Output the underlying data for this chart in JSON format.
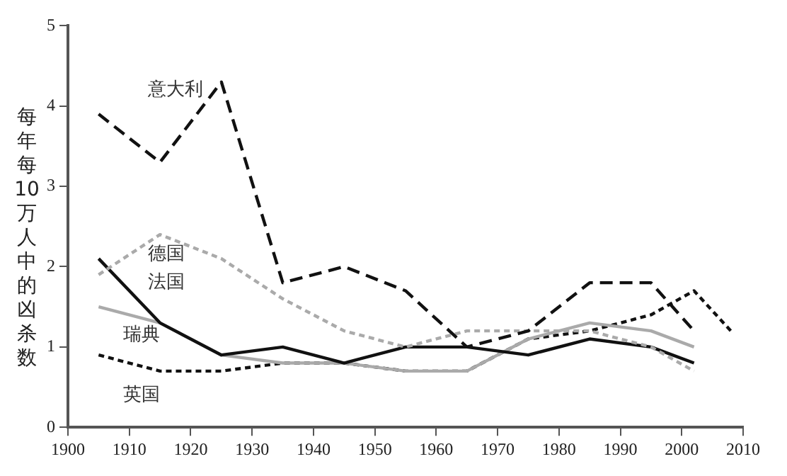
{
  "chart_data": {
    "type": "line",
    "ylabel": "每年每10万人中的凶杀数",
    "xlim": [
      1900,
      2010
    ],
    "xticks": [
      1900,
      1910,
      1920,
      1930,
      1940,
      1950,
      1960,
      1970,
      1980,
      1990,
      2000,
      2010
    ],
    "ylim": [
      0,
      5
    ],
    "yticks": [
      0,
      1,
      2,
      3,
      4,
      5
    ],
    "grid": false,
    "legend": false,
    "marker": "none",
    "x": [
      1905,
      1915,
      1925,
      1935,
      1945,
      1955,
      1965,
      1975,
      1985,
      1995,
      2002
    ],
    "series": [
      {
        "name": "意大利",
        "color": "#111111",
        "line_style": "dashed",
        "values": [
          3.9,
          3.3,
          4.3,
          1.8,
          2.0,
          1.7,
          1.0,
          1.2,
          1.8,
          1.8,
          1.2
        ]
      },
      {
        "name": "德国",
        "color": "#aaaaaa",
        "line_style": "dotted",
        "values": [
          1.9,
          2.4,
          2.1,
          1.6,
          1.2,
          1.0,
          1.2,
          1.2,
          1.2,
          1.0,
          0.7
        ]
      },
      {
        "name": "法国",
        "color": "#111111",
        "line_style": "solid",
        "values": [
          2.1,
          1.3,
          0.9,
          1.0,
          0.8,
          1.0,
          1.0,
          0.9,
          1.1,
          1.0,
          0.8
        ]
      },
      {
        "name": "瑞典",
        "color": "#aaaaaa",
        "line_style": "solid",
        "values": [
          1.5,
          1.3,
          0.9,
          0.8,
          0.8,
          0.7,
          0.7,
          1.1,
          1.3,
          1.2,
          1.0
        ]
      },
      {
        "name": "英国",
        "color": "#111111",
        "line_style": "dotted",
        "x": [
          1905,
          1915,
          1925,
          1935,
          1945,
          1955,
          1965,
          1975,
          1985,
          1995,
          2002,
          2008
        ],
        "values": [
          0.9,
          0.7,
          0.7,
          0.8,
          0.8,
          0.7,
          0.7,
          1.1,
          1.2,
          1.4,
          1.7,
          1.2
        ]
      }
    ]
  }
}
